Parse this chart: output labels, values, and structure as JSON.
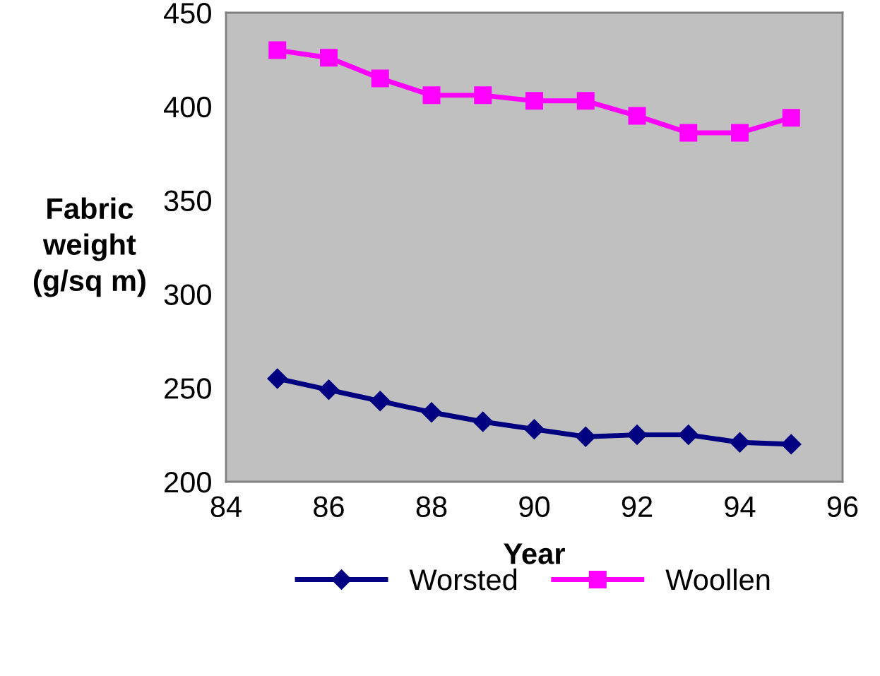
{
  "chart_data": {
    "type": "line",
    "xlabel": "Year",
    "ylabel": "Fabric\nweight\n(g/sq m)",
    "x": [
      85,
      86,
      87,
      88,
      89,
      90,
      91,
      92,
      93,
      94,
      95
    ],
    "series": [
      {
        "name": "Worsted",
        "color": "#000080",
        "marker": "diamond",
        "values": [
          255,
          249,
          243,
          237,
          232,
          228,
          224,
          225,
          225,
          221,
          220
        ]
      },
      {
        "name": "Woollen",
        "color": "#ff00ff",
        "marker": "square",
        "values": [
          430,
          426,
          415,
          406,
          406,
          403,
          403,
          395,
          386,
          386,
          394
        ]
      }
    ],
    "xlim": [
      84,
      96
    ],
    "xticks": [
      84,
      86,
      88,
      90,
      92,
      94,
      96
    ],
    "ylim": [
      200,
      450
    ],
    "yticks": [
      200,
      250,
      300,
      350,
      400,
      450
    ],
    "grid": false,
    "legend": "bottom",
    "line_style": "solid"
  }
}
